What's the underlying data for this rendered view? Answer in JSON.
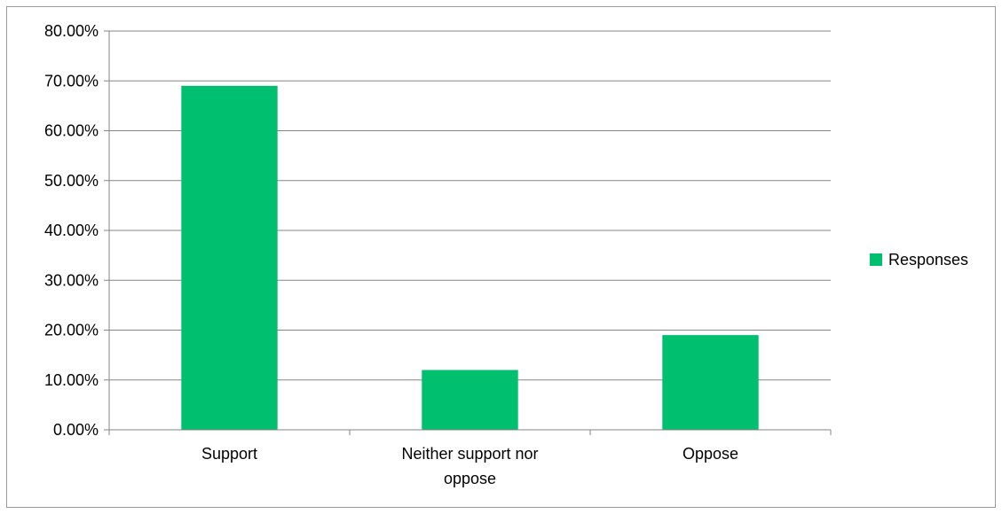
{
  "chart_data": {
    "type": "bar",
    "categories": [
      "Support",
      "Neither support nor oppose",
      "Oppose"
    ],
    "category_label_lines": [
      [
        "Support"
      ],
      [
        "Neither support nor",
        "oppose"
      ],
      [
        "Oppose"
      ]
    ],
    "series": [
      {
        "name": "Responses",
        "values": [
          0.69,
          0.12,
          0.19
        ],
        "color": "#00BF6F"
      }
    ],
    "ylim": [
      0,
      0.8
    ],
    "yticks": [
      0,
      0.1,
      0.2,
      0.3,
      0.4,
      0.5,
      0.6,
      0.7,
      0.8
    ],
    "ytick_labels": [
      "0.00%",
      "10.00%",
      "20.00%",
      "30.00%",
      "40.00%",
      "50.00%",
      "60.00%",
      "70.00%",
      "80.00%"
    ],
    "title": "",
    "xlabel": "",
    "ylabel": "",
    "grid": true,
    "legend_position": "right",
    "gridline_color": "#868686",
    "axis_color": "#868686"
  }
}
